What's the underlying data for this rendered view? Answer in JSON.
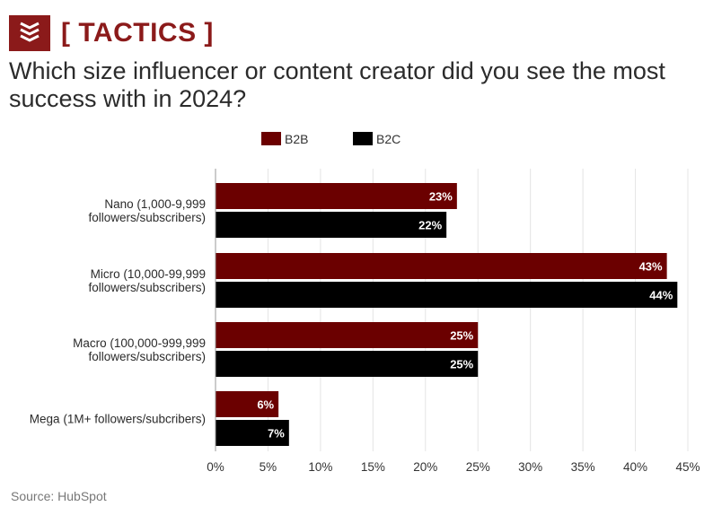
{
  "header": {
    "tag": "[ TACTICS ]",
    "question": "Which size influencer or content creator did you see the most success with in 2024?",
    "logo_icon": "stacked-chevrons-icon"
  },
  "footer": {
    "source": "Source: HubSpot"
  },
  "colors": {
    "b2b": "#6b0000",
    "b2c": "#000000",
    "accent": "#8b1a1a",
    "grid": "#e4e4e4"
  },
  "chart_data": {
    "type": "bar",
    "orientation": "horizontal",
    "categories": [
      [
        "Nano (1,000-9,999",
        "followers/subscribers)"
      ],
      [
        "Micro (10,000-99,999",
        "followers/subscribers)"
      ],
      [
        "Macro (100,000-999,999",
        "followers/subscribers)"
      ],
      [
        "Mega (1M+ followers/subcribers)"
      ]
    ],
    "series": [
      {
        "name": "B2B",
        "values": [
          23,
          43,
          25,
          6
        ],
        "labels": [
          "23%",
          "43%",
          "25%",
          "6%"
        ]
      },
      {
        "name": "B2C",
        "values": [
          22,
          44,
          25,
          7
        ],
        "labels": [
          "22%",
          "44%",
          "25%",
          "7%"
        ]
      }
    ],
    "xlim": [
      0,
      45
    ],
    "xticks": [
      0,
      5,
      10,
      15,
      20,
      25,
      30,
      35,
      40,
      45
    ],
    "xtick_labels": [
      "0%",
      "5%",
      "10%",
      "15%",
      "20%",
      "25%",
      "30%",
      "35%",
      "40%",
      "45%"
    ],
    "legend_position": "top-center",
    "grid": true,
    "title": "Which size influencer or content creator did you see the most success with in 2024?"
  }
}
